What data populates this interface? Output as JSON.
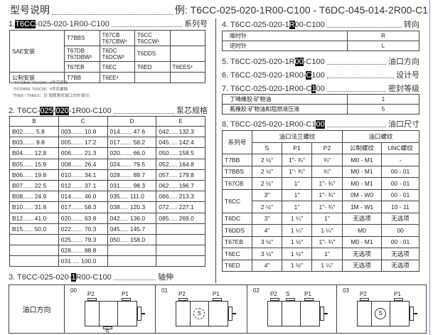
{
  "title": {
    "label": "型号说明",
    "example": "例: T6CC-025-020-1R00-C100 - T6DC-045-014-2R00-C1"
  },
  "sec1": {
    "pre": "1. ",
    "hl": "T6CC",
    "post": "-025-020-1R00-C100",
    "name": "系列号",
    "rows": [
      [
        "SAE安装",
        "T7BBS",
        "T67CB\nT67CBW¹",
        "T6CC\nT6CCW¹",
        ""
      ],
      [
        "",
        "T67DB\nT67DBW²",
        "T6DC\nT6DCW²",
        "T6DDS",
        ""
      ],
      [
        "",
        "T67EB",
        "T6EC",
        "T6ED",
        "T6EES³"
      ],
      [
        "公制安装",
        "T7BB",
        "T6EE³",
        "",
        ""
      ]
    ],
    "footnotes": [
      "¹T67CBW, T6CCW：2号花键轴",
      "²T67DBW, T6DCW：5号花键轴",
      "³T6EE / T6EES：见\"双联泵的油口方向\"部分。"
    ]
  },
  "sec2": {
    "pre": "2. T6CC-",
    "hl1": "025",
    "mid": "-",
    "hl2": "020",
    "post": "-1R00-C100",
    "name": "泵芯规格",
    "headers": [
      "B",
      "C",
      "D",
      "E"
    ],
    "rows": [
      [
        "B02....... 5.8",
        "003....... 10.8",
        "014....... 47.6",
        "042..... 132.3"
      ],
      [
        "B03....... 9.8",
        "005....... 17.2",
        "017....... 58.2",
        "045..... 142.4"
      ],
      [
        "B04...... 12.8",
        "006....... 21.3",
        "020....... 66.0",
        "050..... 158.5"
      ],
      [
        "B05...... 15.9",
        "008....... 26.4",
        "024....... 79.5",
        "052..... 164.8"
      ],
      [
        "B06...... 19.8",
        "010....... 34.1",
        "028....... 89.7",
        "057..... 179.8"
      ],
      [
        "B07...... 22.5",
        "012....... 37.1",
        "031....... 98.3",
        "062..... 196.7"
      ],
      [
        "B08...... 24.9",
        "014....... 46.0",
        "035..... 111.0",
        "066..... 213.3"
      ],
      [
        "B10...... 31.8",
        "017....... 58.3",
        "038..... 120.3",
        "072..... 227.1"
      ],
      [
        "B12...... 41.0",
        "020....... 63.8",
        "042..... 136.0",
        "085..... 269.0"
      ],
      [
        "B15...... 50.0",
        "022....... 70.3",
        "045..... 145.7",
        ""
      ],
      [
        "",
        "025....... 79.3",
        "050..... 158.0",
        ""
      ],
      [
        "",
        "028....... 88.8",
        "",
        ""
      ],
      [
        "",
        "031..... 100.0",
        "",
        ""
      ]
    ]
  },
  "sec3": {
    "pre": "3. T6CC-025-020-",
    "hl": "1",
    "post": "R00-C100",
    "name": "轴伸"
  },
  "sec4": {
    "pre": "4. T6CC-025-020-1",
    "hl": "R",
    "post": "00-C100",
    "name": "转向",
    "rows": [
      [
        "顺时针",
        "R"
      ],
      [
        "逆时针",
        "L"
      ]
    ]
  },
  "sec5": {
    "pre": "5. T6CC-025-020-1R",
    "hl": "00",
    "post": "-C100",
    "name": "油口方向"
  },
  "sec6": {
    "pre": "6. T6CC-025-020-1R00-",
    "hl": "C",
    "post": "100",
    "name": "设计号"
  },
  "sec7": {
    "pre": "7. T6CC-025-020-1R00-C",
    "hl": "1",
    "post": "00",
    "name": "密封等级",
    "rows": [
      [
        "丁晴橡胶:矿物油",
        "1"
      ],
      [
        "氟橡胶:矿物油和阻燃液压液",
        "5"
      ]
    ]
  },
  "sec8": {
    "pre": "8. T6CC-025-020-1R00-C1",
    "hl": "00",
    "post": "",
    "name": "油口尺寸",
    "h_series": "系列号",
    "h_flange": "油口法兰螺纹",
    "h_thread": "油口螺纹",
    "sub": [
      "S",
      "P1",
      "P2",
      "公制螺纹",
      "UNC螺纹"
    ],
    "rows": [
      [
        "T7BB",
        "2 ½\"",
        "1\"- ¾\"",
        "¾\"",
        "M0 - M1",
        "-"
      ],
      [
        "T7BBS",
        "2 ½\"",
        "1\"- ¾\"",
        "¾\"",
        "M0 - M1",
        "00 - 01"
      ],
      [
        "T67CB",
        "2 ½\"",
        "1\"",
        "1\"- ¾\"",
        "M0 - M1",
        "00 - 01"
      ],
      [
        "T6CC",
        "3\"",
        "1\"",
        "1\"- ¾\"",
        "0M - W0",
        "00 - 01"
      ],
      [
        "",
        "2 ½\"",
        "1\"",
        "1\"- ¾\"",
        "1M - W1",
        "10 - 11"
      ],
      [
        "T6DC",
        "3\"",
        "1 ¼\"",
        "1\"",
        "无选项",
        "无选项"
      ],
      [
        "T6DDS",
        "4\"",
        "1 ¼\"",
        "1 ¼\"",
        "M0",
        "00"
      ],
      [
        "T67EB",
        "3 ½\"",
        "1 ½\"",
        "1\"- ¾\"",
        "M0 - M1",
        "00 - 01"
      ],
      [
        "T6EC",
        "3 ½\"",
        "1 ½\"",
        "1\"",
        "无选项",
        "无选项"
      ],
      [
        "T6ED",
        "4\"",
        "1 ½\"",
        "1 ¼\"",
        "无选项",
        "无选项"
      ]
    ]
  },
  "diagram": {
    "label": "油口方向",
    "options": [
      {
        "code": "00",
        "ports": [
          "P2",
          "P1"
        ],
        "s": "S"
      },
      {
        "code": "01",
        "ports": [
          "P2",
          "P1"
        ],
        "s": "S"
      },
      {
        "code": "02",
        "ports": [
          "P2",
          "S",
          "P1"
        ]
      },
      {
        "code": "03",
        "ports": [
          "P2",
          "P1"
        ],
        "s": "S"
      }
    ]
  }
}
